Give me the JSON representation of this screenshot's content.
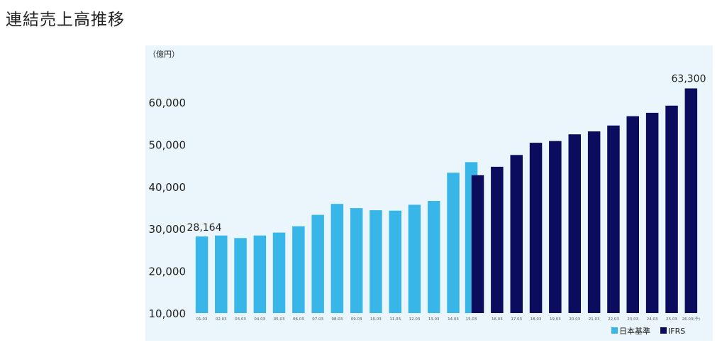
{
  "page": {
    "title": "連結売上高推移"
  },
  "chart_data": {
    "type": "bar",
    "unit_label": "（億円）",
    "ylim": [
      10000,
      65000
    ],
    "yticks": [
      10000,
      20000,
      30000,
      40000,
      50000,
      60000
    ],
    "ytick_labels": [
      "10,000",
      "20,000",
      "30,000",
      "40,000",
      "50,000",
      "60,000"
    ],
    "categories": [
      "01.03",
      "02.03",
      "03.03",
      "04.03",
      "05.03",
      "06.03",
      "07.03",
      "08.03",
      "09.03",
      "10.03",
      "11.03",
      "12.03",
      "13.03",
      "14.03",
      "15.03",
      "15.03",
      "16.03",
      "17.03",
      "18.03",
      "19.03",
      "20.03",
      "21.03",
      "22.03",
      "23.03",
      "24.03",
      "25.03",
      "26.03(予)"
    ],
    "series": [
      {
        "name": "日本基準",
        "color": "#38b6e8",
        "values": [
          28164,
          28400,
          27800,
          28400,
          29100,
          30600,
          33300,
          35900,
          34900,
          34400,
          34300,
          35700,
          36600,
          43300,
          45800,
          null,
          null,
          null,
          null,
          null,
          null,
          null,
          null,
          null,
          null,
          null,
          null
        ]
      },
      {
        "name": "IFRS",
        "color": "#0c0c5e",
        "values": [
          null,
          null,
          null,
          null,
          null,
          null,
          null,
          null,
          null,
          null,
          null,
          null,
          null,
          null,
          null,
          42700,
          44700,
          47500,
          50400,
          50800,
          52400,
          53100,
          54500,
          56700,
          57500,
          59200,
          63300
        ]
      }
    ],
    "data_labels": [
      {
        "category_index": 0,
        "text": "28,164"
      },
      {
        "category_index": 26,
        "text": "63,300"
      }
    ],
    "legend": {
      "position": "bottom-right",
      "items": [
        "日本基準",
        "IFRS"
      ]
    },
    "grid": false
  }
}
